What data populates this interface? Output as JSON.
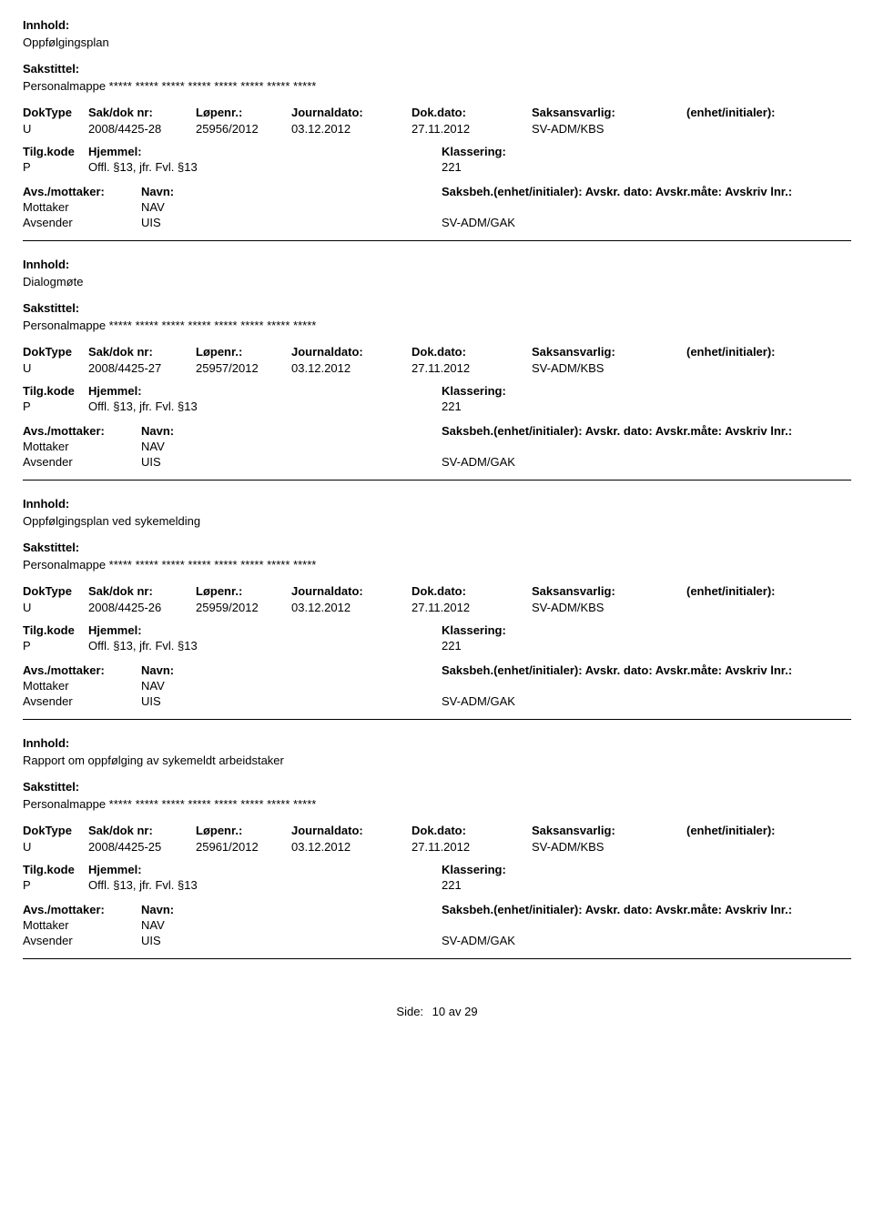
{
  "labels": {
    "innhold": "Innhold:",
    "sakstittel": "Sakstittel:",
    "doktype": "DokType",
    "sakdok": "Sak/dok nr:",
    "lopenr": "Løpenr.:",
    "journaldato": "Journaldato:",
    "dokdato": "Dok.dato:",
    "saksansvarlig": "Saksansvarlig:",
    "enhet": "(enhet/initialer):",
    "tilgkode": "Tilg.kode",
    "hjemmel": "Hjemmel:",
    "klassering": "Klassering:",
    "avsmottaker": "Avs./mottaker:",
    "navn": "Navn:",
    "saksbeh_full": "Saksbeh.(enhet/initialer): Avskr. dato:  Avskr.måte:  Avskriv lnr.:",
    "mottaker": "Mottaker",
    "avsender": "Avsender",
    "side": "Side:",
    "av": "av"
  },
  "records": [
    {
      "innhold": "Oppfølgingsplan",
      "sakstittel": "Personalmappe ***** ***** ***** ***** ***** ***** ***** *****",
      "doktype": "U",
      "sakdok": "2008/4425-28",
      "lopenr": "25956/2012",
      "journaldato": "03.12.2012",
      "dokdato": "27.11.2012",
      "saksansvarlig": "SV-ADM/KBS",
      "enhet": "",
      "tilgkode": "P",
      "hjemmel": "Offl. §13, jfr. Fvl. §13",
      "klassering": "221",
      "mottaker_navn": "NAV",
      "avsender_navn": "UIS",
      "avsender_extra": "SV-ADM/GAK"
    },
    {
      "innhold": "Dialogmøte",
      "sakstittel": "Personalmappe ***** ***** ***** ***** ***** ***** ***** *****",
      "doktype": "U",
      "sakdok": "2008/4425-27",
      "lopenr": "25957/2012",
      "journaldato": "03.12.2012",
      "dokdato": "27.11.2012",
      "saksansvarlig": "SV-ADM/KBS",
      "enhet": "",
      "tilgkode": "P",
      "hjemmel": "Offl. §13, jfr. Fvl. §13",
      "klassering": "221",
      "mottaker_navn": "NAV",
      "avsender_navn": "UIS",
      "avsender_extra": "SV-ADM/GAK"
    },
    {
      "innhold": "Oppfølgingsplan ved sykemelding",
      "sakstittel": "Personalmappe ***** ***** ***** ***** ***** ***** ***** *****",
      "doktype": "U",
      "sakdok": "2008/4425-26",
      "lopenr": "25959/2012",
      "journaldato": "03.12.2012",
      "dokdato": "27.11.2012",
      "saksansvarlig": "SV-ADM/KBS",
      "enhet": "",
      "tilgkode": "P",
      "hjemmel": "Offl. §13, jfr. Fvl. §13",
      "klassering": "221",
      "mottaker_navn": "NAV",
      "avsender_navn": "UIS",
      "avsender_extra": "SV-ADM/GAK"
    },
    {
      "innhold": "Rapport om oppfølging av sykemeldt arbeidstaker",
      "sakstittel": "Personalmappe ***** ***** ***** ***** ***** ***** ***** *****",
      "doktype": "U",
      "sakdok": "2008/4425-25",
      "lopenr": "25961/2012",
      "journaldato": "03.12.2012",
      "dokdato": "27.11.2012",
      "saksansvarlig": "SV-ADM/KBS",
      "enhet": "",
      "tilgkode": "P",
      "hjemmel": "Offl. §13, jfr. Fvl. §13",
      "klassering": "221",
      "mottaker_navn": "NAV",
      "avsender_navn": "UIS",
      "avsender_extra": "SV-ADM/GAK"
    }
  ],
  "footer": {
    "page": "10",
    "total": "29"
  }
}
